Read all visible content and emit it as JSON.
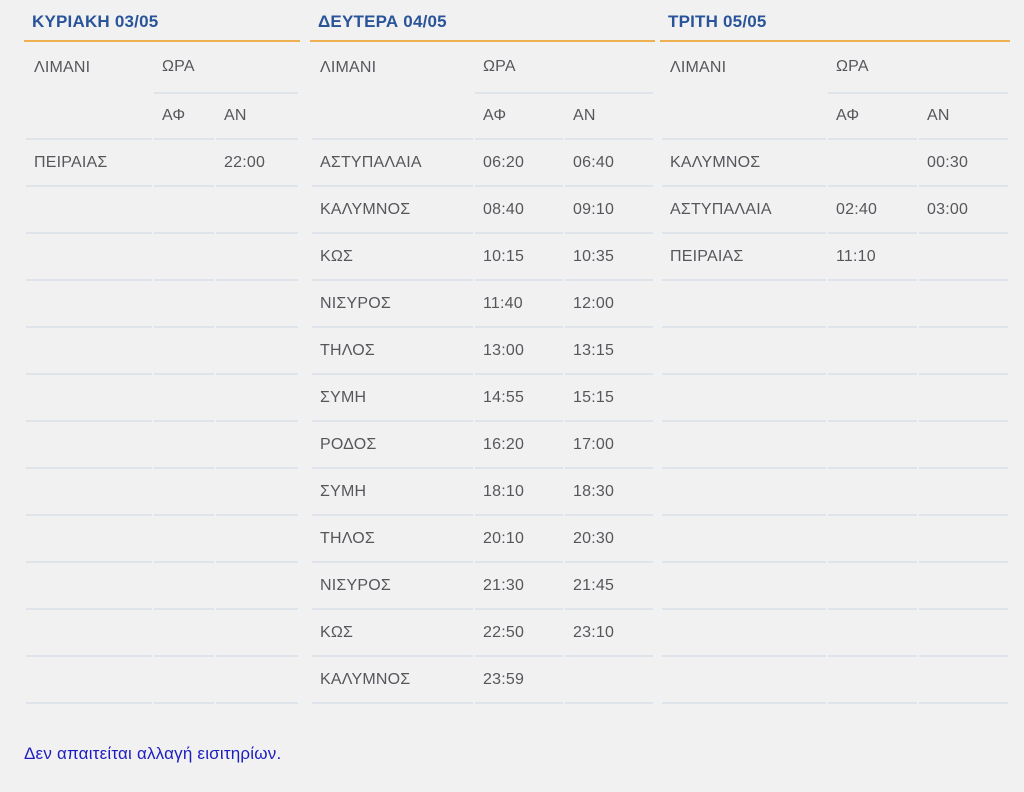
{
  "colors": {
    "background": "#f1f1f2",
    "day_title_blue": "#2a5499",
    "accent_orange_line": "#efb052",
    "row_border": "#dfe4eb",
    "cell_text_gray": "#56575b",
    "note_blue": "#1c1cc0"
  },
  "column_headers": {
    "port": "ΛΙΜΑΝΙ",
    "time": "ΩΡΑ",
    "arrival": "ΑΦ",
    "departure": "ΑΝ"
  },
  "days": [
    {
      "title": "ΚΥΡΙΑΚΗ 03/05",
      "rows": [
        {
          "port": "ΠΕΙΡΑΙΑΣ",
          "af": "",
          "an": "22:00"
        },
        {
          "port": "",
          "af": "",
          "an": ""
        },
        {
          "port": "",
          "af": "",
          "an": ""
        },
        {
          "port": "",
          "af": "",
          "an": ""
        },
        {
          "port": "",
          "af": "",
          "an": ""
        },
        {
          "port": "",
          "af": "",
          "an": ""
        },
        {
          "port": "",
          "af": "",
          "an": ""
        },
        {
          "port": "",
          "af": "",
          "an": ""
        },
        {
          "port": "",
          "af": "",
          "an": ""
        },
        {
          "port": "",
          "af": "",
          "an": ""
        },
        {
          "port": "",
          "af": "",
          "an": ""
        },
        {
          "port": "",
          "af": "",
          "an": ""
        }
      ]
    },
    {
      "title": "ΔΕΥΤΕΡΑ 04/05",
      "rows": [
        {
          "port": "ΑΣΤΥΠΑΛΑΙΑ",
          "af": "06:20",
          "an": "06:40"
        },
        {
          "port": "ΚΑΛΥΜΝΟΣ",
          "af": "08:40",
          "an": "09:10"
        },
        {
          "port": "ΚΩΣ",
          "af": "10:15",
          "an": "10:35"
        },
        {
          "port": "ΝΙΣΥΡΟΣ",
          "af": "11:40",
          "an": "12:00"
        },
        {
          "port": "ΤΗΛΟΣ",
          "af": "13:00",
          "an": "13:15"
        },
        {
          "port": "ΣΥΜΗ",
          "af": "14:55",
          "an": "15:15"
        },
        {
          "port": "ΡΟΔΟΣ",
          "af": "16:20",
          "an": "17:00"
        },
        {
          "port": "ΣΥΜΗ",
          "af": "18:10",
          "an": "18:30"
        },
        {
          "port": "ΤΗΛΟΣ",
          "af": "20:10",
          "an": "20:30"
        },
        {
          "port": "ΝΙΣΥΡΟΣ",
          "af": "21:30",
          "an": "21:45"
        },
        {
          "port": "ΚΩΣ",
          "af": "22:50",
          "an": "23:10"
        },
        {
          "port": "ΚΑΛΥΜΝΟΣ",
          "af": "23:59",
          "an": ""
        }
      ]
    },
    {
      "title": "ΤΡΙΤΗ 05/05",
      "rows": [
        {
          "port": "ΚΑΛΥΜΝΟΣ",
          "af": "",
          "an": "00:30"
        },
        {
          "port": "ΑΣΤΥΠΑΛΑΙΑ",
          "af": "02:40",
          "an": "03:00"
        },
        {
          "port": "ΠΕΙΡΑΙΑΣ",
          "af": "11:10",
          "an": ""
        },
        {
          "port": "",
          "af": "",
          "an": ""
        },
        {
          "port": "",
          "af": "",
          "an": ""
        },
        {
          "port": "",
          "af": "",
          "an": ""
        },
        {
          "port": "",
          "af": "",
          "an": ""
        },
        {
          "port": "",
          "af": "",
          "an": ""
        },
        {
          "port": "",
          "af": "",
          "an": ""
        },
        {
          "port": "",
          "af": "",
          "an": ""
        },
        {
          "port": "",
          "af": "",
          "an": ""
        },
        {
          "port": "",
          "af": "",
          "an": ""
        }
      ]
    }
  ],
  "note": {
    "text": "Δεν απαιτείται αλλαγή εισιτηρίων."
  }
}
